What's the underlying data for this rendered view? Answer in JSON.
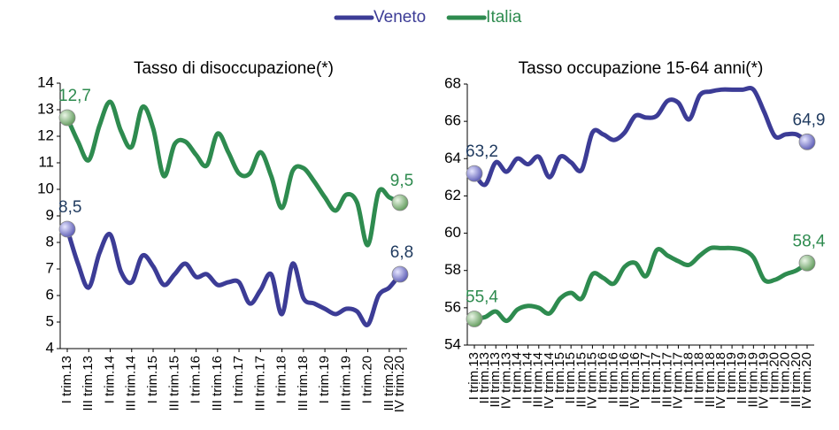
{
  "chart_data": [
    {
      "type": "line",
      "title": "Tasso di disoccupazione(*)",
      "categories": [
        "I trim.13",
        null,
        "III trim.13",
        null,
        "I trim.14",
        null,
        "III trim.14",
        null,
        "I trim.15",
        null,
        "III trim.15",
        null,
        "I trim.16",
        null,
        "III trim.16",
        null,
        "I trim.17",
        null,
        "III trim.17",
        null,
        "I trim.18",
        null,
        "III trim.18",
        null,
        "I trim.19",
        null,
        "III trim.19",
        null,
        "I trim.20",
        null,
        "III trim.20",
        "IV trim.20"
      ],
      "ylim": [
        4,
        14
      ],
      "yticks": [
        4,
        5,
        6,
        7,
        8,
        9,
        10,
        11,
        12,
        13,
        14
      ],
      "series": [
        {
          "name": "Veneto",
          "color": "#3c3c96",
          "label_color": "#1f3a5f",
          "values": [
            8.5,
            7.2,
            6.3,
            7.6,
            8.3,
            6.9,
            6.5,
            7.5,
            7.1,
            6.4,
            6.8,
            7.2,
            6.7,
            6.8,
            6.4,
            6.5,
            6.5,
            5.7,
            6.2,
            6.8,
            5.3,
            7.2,
            5.9,
            5.7,
            5.5,
            5.3,
            5.5,
            5.4,
            4.9,
            6.0,
            6.3,
            6.8
          ],
          "value_labels": [
            "8,5",
            null,
            null,
            null,
            null,
            null,
            null,
            null,
            null,
            null,
            null,
            null,
            null,
            null,
            null,
            null,
            null,
            null,
            null,
            null,
            null,
            null,
            null,
            null,
            null,
            null,
            null,
            null,
            null,
            null,
            null,
            "6,8"
          ]
        },
        {
          "name": "Italia",
          "color": "#2e8b4f",
          "label_color": "#2e8b4f",
          "values": [
            12.7,
            11.8,
            11.1,
            12.4,
            13.3,
            12.2,
            11.6,
            13.1,
            12.3,
            10.5,
            11.7,
            11.8,
            11.3,
            10.9,
            12.1,
            11.4,
            10.6,
            10.6,
            11.4,
            10.5,
            9.3,
            10.7,
            10.8,
            10.3,
            9.7,
            9.2,
            9.8,
            9.5,
            7.9,
            9.9,
            9.7,
            9.5
          ],
          "value_labels": [
            "12,7",
            null,
            null,
            null,
            null,
            null,
            null,
            null,
            null,
            null,
            null,
            null,
            null,
            null,
            null,
            null,
            null,
            null,
            null,
            null,
            null,
            null,
            null,
            null,
            null,
            null,
            null,
            null,
            null,
            null,
            null,
            "9,5"
          ]
        }
      ]
    },
    {
      "type": "line",
      "title": "Tasso occupazione 15-64 anni(*)",
      "categories": [
        "I trim.13",
        "II trim.13",
        "III trim.13",
        "IV trim.13",
        "I trim.14",
        "II trim.14",
        "III trim.14",
        "IV trim.14",
        "I trim.15",
        "II trim.15",
        "III trim.15",
        "IV trim.15",
        "I trim.16",
        "II trim.16",
        "III trim.16",
        "IV trim.16",
        "I trim.17",
        "II trim.17",
        "III trim.17",
        "IV trim.17",
        "I trim.18",
        "II trim.18",
        "III trim.18",
        "IV trim.18",
        "I trim.19",
        "II trim.19",
        "III trim.19",
        "IV trim.19",
        "I trim.20",
        "II trim.20",
        "III trim.20",
        "IV trim.20"
      ],
      "ylim": [
        54,
        68
      ],
      "yticks": [
        54,
        56,
        58,
        60,
        62,
        64,
        66,
        68
      ],
      "series": [
        {
          "name": "Veneto",
          "color": "#3c3c96",
          "label_color": "#1f3a5f",
          "values": [
            63.2,
            62.6,
            63.8,
            63.3,
            64.0,
            63.7,
            64.1,
            63.0,
            64.1,
            63.8,
            63.4,
            65.4,
            65.3,
            65.0,
            65.4,
            66.3,
            66.2,
            66.3,
            67.1,
            67.0,
            66.1,
            67.4,
            67.6,
            67.7,
            67.7,
            67.7,
            67.7,
            66.5,
            65.2,
            65.3,
            65.3,
            64.9
          ],
          "value_labels": [
            "63,2",
            null,
            null,
            null,
            null,
            null,
            null,
            null,
            null,
            null,
            null,
            null,
            null,
            null,
            null,
            null,
            null,
            null,
            null,
            null,
            null,
            null,
            null,
            null,
            null,
            null,
            null,
            null,
            null,
            null,
            null,
            "64,9"
          ]
        },
        {
          "name": "Italia",
          "color": "#2e8b4f",
          "label_color": "#2e8b4f",
          "values": [
            55.4,
            55.5,
            55.8,
            55.3,
            55.9,
            56.1,
            56.0,
            55.7,
            56.5,
            56.8,
            56.5,
            57.8,
            57.6,
            57.3,
            58.2,
            58.4,
            57.7,
            59.1,
            58.8,
            58.5,
            58.3,
            58.8,
            59.2,
            59.2,
            59.2,
            59.1,
            58.7,
            57.5,
            57.5,
            57.8,
            58.0,
            58.4
          ],
          "value_labels": [
            "55,4",
            null,
            null,
            null,
            null,
            null,
            null,
            null,
            null,
            null,
            null,
            null,
            null,
            null,
            null,
            null,
            null,
            null,
            null,
            null,
            null,
            null,
            null,
            null,
            null,
            null,
            null,
            null,
            null,
            null,
            null,
            "58,4"
          ]
        }
      ]
    }
  ]
}
